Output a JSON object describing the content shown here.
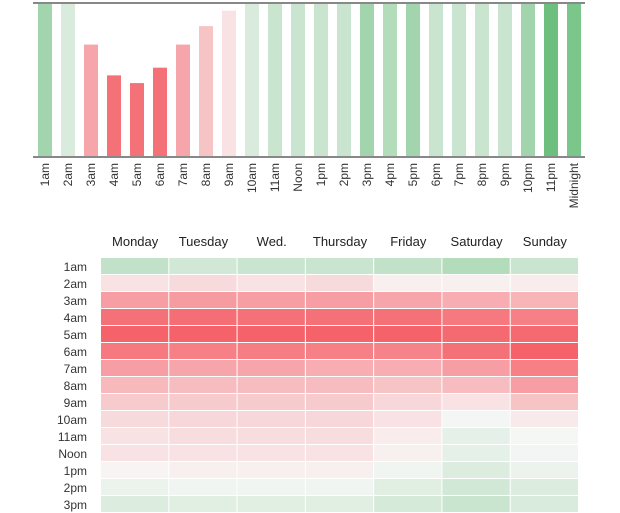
{
  "chart_data": [
    {
      "type": "bar",
      "title": "",
      "xlabel": "",
      "ylabel": "",
      "ylim": [
        0,
        100
      ],
      "note": "bars reaching 100 are clipped at the top rule",
      "categories": [
        "1am",
        "2am",
        "3am",
        "4am",
        "5am",
        "6am",
        "7am",
        "8am",
        "9am",
        "10am",
        "11am",
        "Noon",
        "1pm",
        "2pm",
        "3pm",
        "4pm",
        "5pm",
        "6pm",
        "7pm",
        "8pm",
        "9pm",
        "10pm",
        "11pm",
        "Midnight"
      ],
      "values": [
        100,
        100,
        73,
        53,
        48,
        58,
        73,
        85,
        95,
        100,
        100,
        100,
        100,
        100,
        100,
        100,
        100,
        100,
        100,
        100,
        100,
        100,
        100,
        100
      ],
      "color_scores": [
        0.55,
        0.2,
        -0.55,
        -0.9,
        -0.9,
        -0.9,
        -0.55,
        -0.35,
        -0.15,
        0.2,
        0.3,
        0.3,
        0.3,
        0.3,
        0.55,
        0.45,
        0.55,
        0.3,
        0.3,
        0.3,
        0.3,
        0.55,
        0.9,
        0.8
      ]
    },
    {
      "type": "heatmap",
      "title": "",
      "columns": [
        "Monday",
        "Tuesday",
        "Wed.",
        "Thursday",
        "Friday",
        "Saturday",
        "Sunday"
      ],
      "rows": [
        "1am",
        "2am",
        "3am",
        "4am",
        "5am",
        "6am",
        "7am",
        "8am",
        "9am",
        "10am",
        "11am",
        "Noon",
        "1pm",
        "2pm",
        "3pm"
      ],
      "value_scale": "-1 = most red, +1 = most green",
      "values": [
        [
          0.35,
          0.25,
          0.3,
          0.3,
          0.35,
          0.45,
          0.3
        ],
        [
          -0.15,
          -0.2,
          -0.15,
          -0.2,
          -0.06,
          -0.06,
          -0.08
        ],
        [
          -0.6,
          -0.62,
          -0.6,
          -0.6,
          -0.55,
          -0.5,
          -0.45
        ],
        [
          -0.9,
          -0.92,
          -0.9,
          -0.9,
          -0.9,
          -0.85,
          -0.8
        ],
        [
          -1,
          -1,
          -1,
          -1,
          -1,
          -0.95,
          -0.95
        ],
        [
          -0.85,
          -0.8,
          -0.82,
          -0.8,
          -0.78,
          -0.9,
          -1
        ],
        [
          -0.6,
          -0.55,
          -0.55,
          -0.5,
          -0.5,
          -0.6,
          -0.8
        ],
        [
          -0.42,
          -0.4,
          -0.4,
          -0.4,
          -0.35,
          -0.4,
          -0.6
        ],
        [
          -0.3,
          -0.3,
          -0.3,
          -0.3,
          -0.22,
          -0.15,
          -0.35
        ],
        [
          -0.2,
          -0.22,
          -0.22,
          -0.22,
          -0.15,
          0.03,
          -0.1
        ],
        [
          -0.15,
          -0.18,
          -0.18,
          -0.18,
          -0.08,
          0.12,
          0.02
        ],
        [
          -0.15,
          -0.15,
          -0.15,
          -0.15,
          -0.06,
          0.12,
          0.04
        ],
        [
          -0.03,
          -0.06,
          -0.06,
          -0.06,
          0.05,
          0.18,
          0.08
        ],
        [
          0.08,
          0.05,
          0.05,
          0.05,
          0.15,
          0.25,
          0.18
        ],
        [
          0.18,
          0.15,
          0.15,
          0.15,
          0.22,
          0.3,
          0.2
        ]
      ]
    }
  ],
  "colors": {
    "red": "#f5626a",
    "green": "#5cb96f",
    "neutral": "#f8f8f8",
    "axis": "#888888"
  }
}
